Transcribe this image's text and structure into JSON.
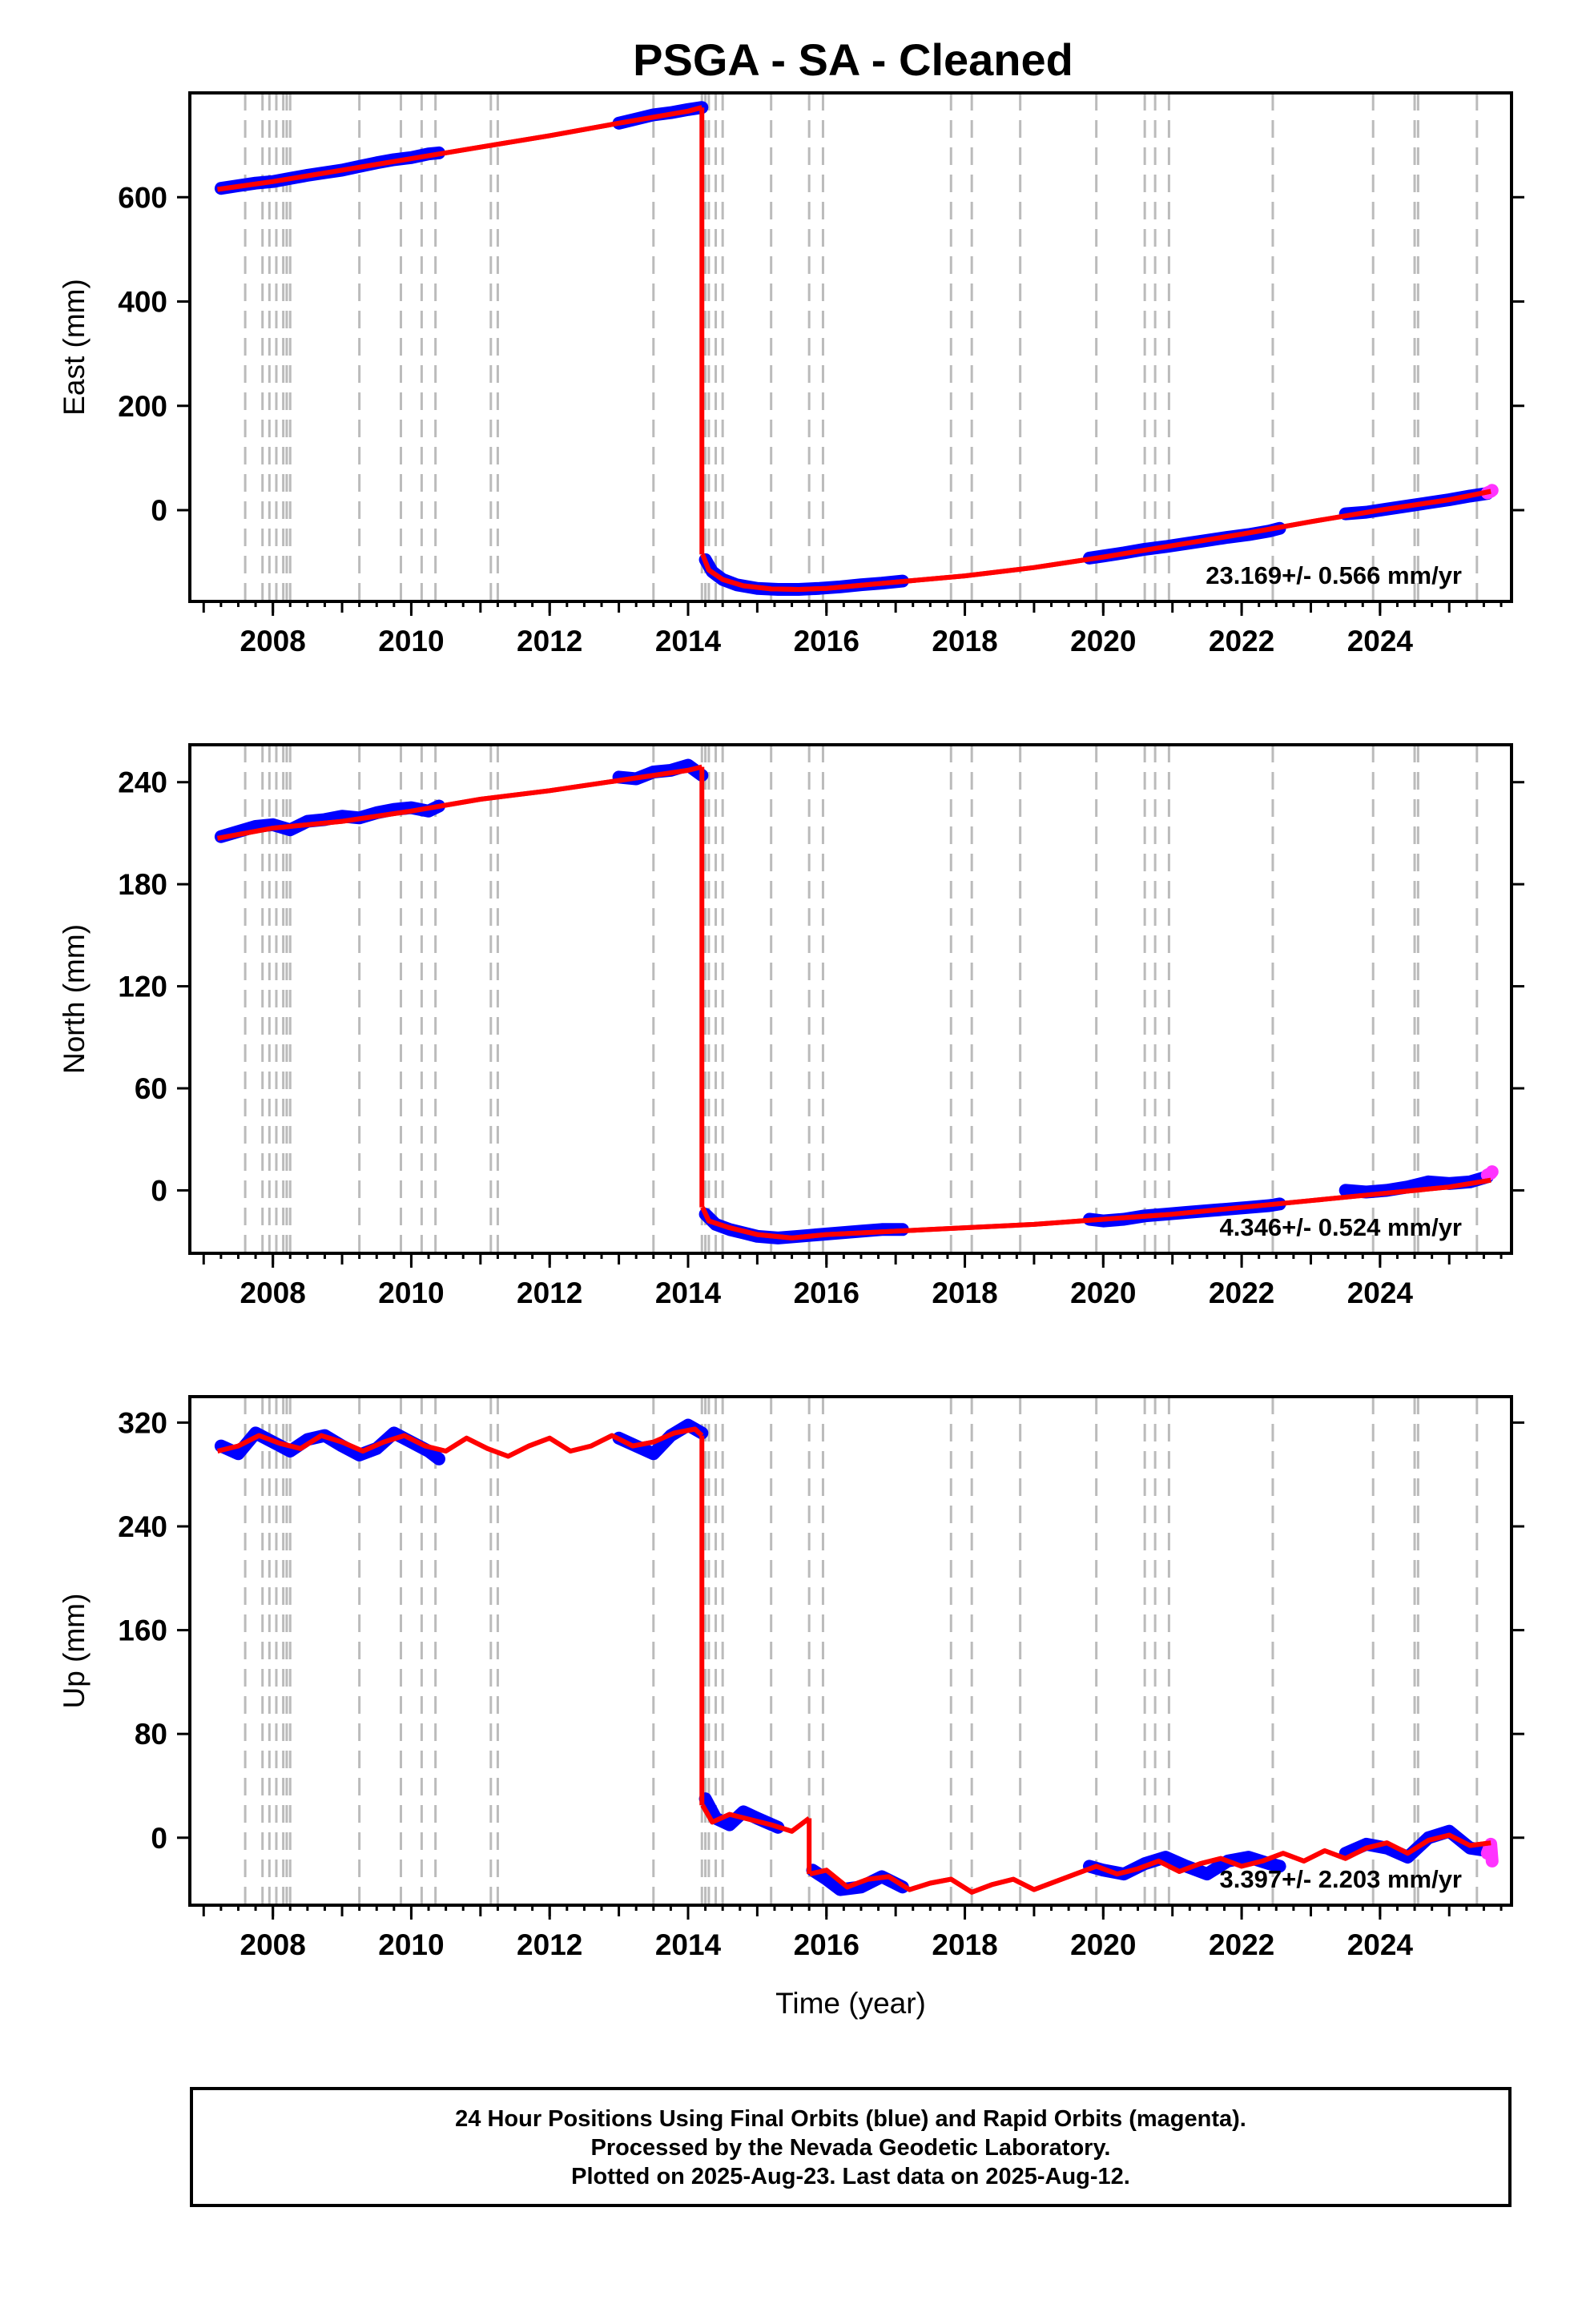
{
  "title": "PSGA  - SA - Cleaned",
  "xlabel": "Time (year)",
  "footer": {
    "line1": "24 Hour Positions Using Final Orbits (blue) and Rapid Orbits (magenta).",
    "line2": "Processed by the Nevada Geodetic Laboratory.",
    "line3": "Plotted on 2025-Aug-23. Last data on 2025-Aug-12."
  },
  "colors": {
    "final_orbits": "#0000ff",
    "rapid_orbits": "#ff33ff",
    "model_fit": "#ff0000",
    "event_lines": "#bbbbbb"
  },
  "chart_data": [
    {
      "type": "scatter",
      "panel": "east",
      "ylabel": "East (mm)",
      "rate_label": "23.169+/- 0.566 mm/yr",
      "xlim": [
        2006.8,
        2025.9
      ],
      "ylim": [
        -175,
        800
      ],
      "yticks": [
        0,
        200,
        400,
        600
      ],
      "xticks": [
        2008,
        2010,
        2012,
        2014,
        2016,
        2018,
        2020,
        2022,
        2024
      ],
      "grid": false,
      "events": [
        2007.6,
        2007.85,
        2007.95,
        2008.05,
        2008.15,
        2008.2,
        2008.25,
        2009.25,
        2009.85,
        2010.15,
        2010.35,
        2011.15,
        2011.25,
        2013.5,
        2014.2,
        2014.25,
        2014.3,
        2014.4,
        2014.5,
        2015.2,
        2015.75,
        2015.95,
        2017.8,
        2018.1,
        2018.8,
        2019.9,
        2020.6,
        2020.75,
        2020.95,
        2022.45,
        2023.9,
        2024.5,
        2024.55,
        2025.4
      ],
      "series": [
        {
          "name": "Final Orbits",
          "segments": [
            {
              "x": [
                2007.25,
                2007.5,
                2007.75,
                2008.0,
                2008.25,
                2008.5,
                2008.75,
                2009.0,
                2009.25,
                2009.5,
                2009.75,
                2010.0,
                2010.25,
                2010.4
              ],
              "y": [
                617,
                622,
                627,
                630,
                636,
                642,
                647,
                652,
                659,
                666,
                672,
                676,
                683,
                685
              ]
            },
            {
              "x": [
                2013.0,
                2013.25,
                2013.5,
                2013.75,
                2014.0,
                2014.2
              ],
              "y": [
                742,
                750,
                758,
                762,
                768,
                772
              ]
            },
            {
              "x": [
                2014.25,
                2014.35,
                2014.5,
                2014.7,
                2015.0,
                2015.3,
                2015.6,
                2015.9,
                2016.2,
                2016.5,
                2016.8,
                2017.1
              ],
              "y": [
                -95,
                -118,
                -133,
                -143,
                -150,
                -152,
                -152,
                -150,
                -147,
                -143,
                -140,
                -136
              ]
            },
            {
              "x": [
                2019.8,
                2020.0,
                2020.3,
                2020.6,
                2020.9,
                2021.2,
                2021.5,
                2021.8,
                2022.1,
                2022.4,
                2022.55
              ],
              "y": [
                -92,
                -88,
                -82,
                -75,
                -70,
                -64,
                -58,
                -52,
                -47,
                -40,
                -35
              ]
            },
            {
              "x": [
                2023.5,
                2023.8,
                2024.1,
                2024.4,
                2024.7,
                2025.0,
                2025.3,
                2025.55
              ],
              "y": [
                -7,
                -4,
                2,
                8,
                14,
                20,
                27,
                32
              ]
            }
          ]
        },
        {
          "name": "Rapid Orbits",
          "segments": [
            {
              "x": [
                2025.55,
                2025.6,
                2025.62
              ],
              "y": [
                33,
                36,
                38
              ]
            }
          ]
        },
        {
          "name": "Model",
          "segments": [
            {
              "x": [
                2007.2,
                2008.0,
                2009.0,
                2010.0,
                2011.0,
                2012.0,
                2013.0,
                2014.0,
                2014.2
              ],
              "y": [
                615,
                630,
                652,
                674,
                696,
                718,
                742,
                765,
                772
              ]
            },
            {
              "x": [
                2014.21,
                2014.3,
                2014.5,
                2014.8,
                2015.2,
                2015.6,
                2016.0,
                2017.0,
                2018.0,
                2019.0,
                2020.0,
                2021.0,
                2022.0,
                2023.0,
                2024.0,
                2025.0,
                2025.6
              ],
              "y": [
                -85,
                -115,
                -133,
                -145,
                -151,
                -152,
                -150,
                -138,
                -126,
                -110,
                -90,
                -68,
                -46,
                -22,
                0,
                20,
                36
              ]
            }
          ]
        }
      ]
    },
    {
      "type": "scatter",
      "panel": "north",
      "ylabel": "North (mm)",
      "rate_label": "4.346+/- 0.524 mm/yr",
      "xlim": [
        2006.8,
        2025.9
      ],
      "ylim": [
        -37,
        262
      ],
      "yticks": [
        0,
        60,
        120,
        180,
        240
      ],
      "xticks": [
        2008,
        2010,
        2012,
        2014,
        2016,
        2018,
        2020,
        2022,
        2024
      ],
      "grid": false,
      "events": [
        2007.6,
        2007.85,
        2007.95,
        2008.05,
        2008.15,
        2008.2,
        2008.25,
        2009.25,
        2009.85,
        2010.15,
        2010.35,
        2011.15,
        2011.25,
        2013.5,
        2014.2,
        2014.25,
        2014.3,
        2014.4,
        2014.5,
        2015.2,
        2015.75,
        2015.95,
        2017.8,
        2018.1,
        2018.8,
        2019.9,
        2020.6,
        2020.75,
        2020.95,
        2022.45,
        2023.9,
        2024.5,
        2024.55,
        2025.4
      ],
      "series": [
        {
          "name": "Final Orbits",
          "segments": [
            {
              "x": [
                2007.25,
                2007.5,
                2007.75,
                2008.0,
                2008.25,
                2008.5,
                2008.75,
                2009.0,
                2009.25,
                2009.5,
                2009.75,
                2010.0,
                2010.25,
                2010.4
              ],
              "y": [
                208,
                211,
                214,
                215,
                212,
                217,
                218,
                220,
                219,
                222,
                224,
                225,
                223,
                226
              ]
            },
            {
              "x": [
                2013.0,
                2013.25,
                2013.5,
                2013.75,
                2014.0,
                2014.2
              ],
              "y": [
                243,
                242,
                246,
                247,
                250,
                244
              ]
            },
            {
              "x": [
                2014.25,
                2014.4,
                2014.6,
                2014.8,
                2015.0,
                2015.3,
                2015.6,
                2015.9,
                2016.2,
                2016.5,
                2016.8,
                2017.1
              ],
              "y": [
                -14,
                -20,
                -23,
                -25,
                -27,
                -28,
                -27,
                -26,
                -25,
                -24,
                -23,
                -23
              ]
            },
            {
              "x": [
                2019.8,
                2020.0,
                2020.3,
                2020.6,
                2020.9,
                2021.2,
                2021.5,
                2021.8,
                2022.1,
                2022.4,
                2022.55
              ],
              "y": [
                -17,
                -18,
                -17,
                -15,
                -14,
                -13,
                -12,
                -11,
                -10,
                -9,
                -8
              ]
            },
            {
              "x": [
                2023.5,
                2023.8,
                2024.1,
                2024.4,
                2024.7,
                2025.0,
                2025.3,
                2025.55
              ],
              "y": [
                0,
                -1,
                0,
                2,
                5,
                4,
                5,
                8
              ]
            }
          ]
        },
        {
          "name": "Rapid Orbits",
          "segments": [
            {
              "x": [
                2025.55,
                2025.6,
                2025.62
              ],
              "y": [
                9,
                10,
                11
              ]
            }
          ]
        },
        {
          "name": "Model",
          "segments": [
            {
              "x": [
                2007.2,
                2008.0,
                2009.0,
                2010.0,
                2011.0,
                2012.0,
                2013.0,
                2014.0,
                2014.2
              ],
              "y": [
                207,
                213,
                217,
                223,
                230,
                235,
                241,
                247,
                249
              ]
            },
            {
              "x": [
                2014.21,
                2014.3,
                2014.6,
                2015.0,
                2015.5,
                2016.0,
                2017.0,
                2018.0,
                2019.0,
                2020.0,
                2021.0,
                2022.0,
                2023.0,
                2024.0,
                2025.0,
                2025.6
              ],
              "y": [
                -10,
                -18,
                -22,
                -26,
                -28,
                -26,
                -24,
                -22,
                -20,
                -17,
                -14,
                -10,
                -6,
                -2,
                2,
                6
              ]
            }
          ]
        }
      ]
    },
    {
      "type": "scatter",
      "panel": "up",
      "ylabel": "Up (mm)",
      "rate_label": "3.397+/- 2.203 mm/yr",
      "xlim": [
        2006.8,
        2025.9
      ],
      "ylim": [
        -52,
        340
      ],
      "yticks": [
        0,
        80,
        160,
        240,
        320
      ],
      "xticks": [
        2008,
        2010,
        2012,
        2014,
        2016,
        2018,
        2020,
        2022,
        2024
      ],
      "grid": false,
      "events": [
        2007.6,
        2007.85,
        2007.95,
        2008.05,
        2008.15,
        2008.2,
        2008.25,
        2009.25,
        2009.85,
        2010.15,
        2010.35,
        2011.15,
        2011.25,
        2013.5,
        2014.2,
        2014.25,
        2014.3,
        2014.4,
        2014.5,
        2015.2,
        2015.75,
        2015.95,
        2017.8,
        2018.1,
        2018.8,
        2019.9,
        2020.6,
        2020.75,
        2020.95,
        2022.45,
        2023.9,
        2024.5,
        2024.55,
        2025.4
      ],
      "series": [
        {
          "name": "Final Orbits",
          "segments": [
            {
              "x": [
                2007.25,
                2007.5,
                2007.75,
                2008.0,
                2008.25,
                2008.5,
                2008.75,
                2009.0,
                2009.25,
                2009.5,
                2009.75,
                2010.0,
                2010.25,
                2010.4
              ],
              "y": [
                302,
                296,
                312,
                305,
                298,
                307,
                310,
                302,
                295,
                300,
                312,
                305,
                298,
                292
              ]
            },
            {
              "x": [
                2013.0,
                2013.25,
                2013.5,
                2013.75,
                2014.0,
                2014.2
              ],
              "y": [
                308,
                302,
                296,
                310,
                318,
                312
              ]
            },
            {
              "x": [
                2014.25,
                2014.4,
                2014.6,
                2014.8,
                2015.0,
                2015.3
              ],
              "y": [
                30,
                15,
                10,
                20,
                15,
                8
              ]
            },
            {
              "x": [
                2015.8,
                2016.0,
                2016.2,
                2016.5,
                2016.8,
                2017.1
              ],
              "y": [
                -25,
                -32,
                -40,
                -38,
                -30,
                -38
              ]
            },
            {
              "x": [
                2019.8,
                2020.0,
                2020.3,
                2020.6,
                2020.9,
                2021.2,
                2021.5,
                2021.8,
                2022.1,
                2022.4,
                2022.55
              ],
              "y": [
                -22,
                -25,
                -28,
                -20,
                -15,
                -22,
                -28,
                -18,
                -15,
                -20,
                -22
              ]
            },
            {
              "x": [
                2023.5,
                2023.8,
                2024.1,
                2024.4,
                2024.7,
                2025.0,
                2025.3,
                2025.55
              ],
              "y": [
                -12,
                -5,
                -8,
                -15,
                0,
                5,
                -8,
                -10
              ]
            }
          ]
        },
        {
          "name": "Rapid Orbits",
          "segments": [
            {
              "x": [
                2025.55,
                2025.6,
                2025.62
              ],
              "y": [
                -12,
                -5,
                -18
              ]
            }
          ]
        },
        {
          "name": "Model",
          "segments": [
            {
              "x": [
                2007.2,
                2007.5,
                2007.8,
                2008.1,
                2008.4,
                2008.7,
                2009.0,
                2009.3,
                2009.6,
                2009.9,
                2010.2,
                2010.5,
                2010.8,
                2011.1,
                2011.4,
                2011.7,
                2012.0,
                2012.3,
                2012.6,
                2012.9,
                2013.2,
                2013.5,
                2013.8,
                2014.1,
                2014.2
              ],
              "y": [
                298,
                302,
                310,
                304,
                300,
                310,
                305,
                298,
                305,
                310,
                302,
                298,
                308,
                300,
                294,
                302,
                308,
                298,
                302,
                310,
                302,
                305,
                312,
                315,
                310
              ]
            },
            {
              "x": [
                2014.21,
                2014.35,
                2014.6,
                2014.9,
                2015.2,
                2015.5,
                2015.75
              ],
              "y": [
                25,
                12,
                18,
                14,
                10,
                5,
                15
              ]
            },
            {
              "x": [
                2015.76,
                2016.0,
                2016.3,
                2016.6,
                2016.9,
                2017.2,
                2017.5,
                2017.8,
                2018.1,
                2018.4,
                2018.7,
                2019.0,
                2019.3,
                2019.6,
                2019.9,
                2020.2,
                2020.5,
                2020.8,
                2021.1,
                2021.4,
                2021.7,
                2022.0,
                2022.3,
                2022.6,
                2022.9,
                2023.2,
                2023.5,
                2023.8,
                2024.1,
                2024.4,
                2024.7,
                2025.0,
                2025.3,
                2025.6
              ],
              "y": [
                -28,
                -25,
                -38,
                -32,
                -30,
                -40,
                -35,
                -32,
                -42,
                -36,
                -32,
                -40,
                -34,
                -28,
                -22,
                -28,
                -24,
                -18,
                -26,
                -20,
                -16,
                -22,
                -18,
                -12,
                -18,
                -10,
                -16,
                -8,
                -4,
                -12,
                -2,
                2,
                -6,
                -4
              ]
            }
          ]
        }
      ]
    }
  ]
}
